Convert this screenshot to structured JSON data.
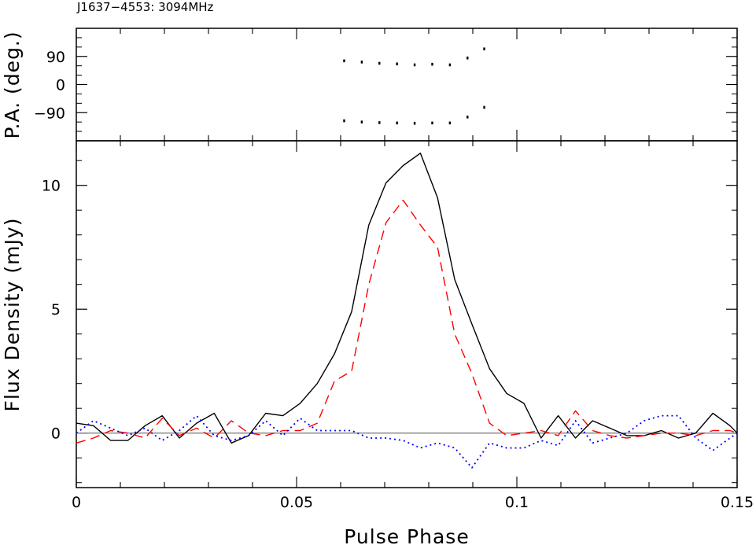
{
  "chart_data": [
    {
      "type": "scatter",
      "title": "J1637−4553: 3094MHz",
      "ylabel": "P.A. (deg.)",
      "xlabel": "",
      "xlim": [
        0,
        0.15
      ],
      "ylim": [
        -180,
        180
      ],
      "grid": false,
      "yticks": [
        {
          "value": 90,
          "label": "90"
        },
        {
          "value": 0,
          "label": "0"
        },
        {
          "value": -90,
          "label": "−90"
        }
      ],
      "series": [
        {
          "color": "#000000",
          "points": [
            [
              0.0608,
              76
            ],
            [
              0.0648,
              72
            ],
            [
              0.0688,
              68
            ],
            [
              0.0728,
              66
            ],
            [
              0.0768,
              63
            ],
            [
              0.0808,
              65
            ],
            [
              0.0848,
              63
            ],
            [
              0.0888,
              85
            ],
            [
              0.0926,
              114
            ],
            [
              0.0608,
              -116
            ],
            [
              0.0648,
              -120
            ],
            [
              0.0688,
              -122
            ],
            [
              0.0728,
              -123
            ],
            [
              0.0768,
              -124
            ],
            [
              0.0808,
              -123
            ],
            [
              0.0848,
              -123
            ],
            [
              0.0888,
              -104
            ],
            [
              0.0926,
              -73
            ]
          ]
        }
      ]
    },
    {
      "type": "line",
      "title": "",
      "xlabel": "Pulse Phase",
      "ylabel": "Flux Density (mJy)",
      "xlim": [
        0,
        0.15
      ],
      "ylim": [
        -2.2,
        11.8
      ],
      "grid": false,
      "xticks": [
        {
          "value": 0,
          "label": "0"
        },
        {
          "value": 0.05,
          "label": "0.05"
        },
        {
          "value": 0.1,
          "label": "0.1"
        },
        {
          "value": 0.15,
          "label": "0.15"
        }
      ],
      "yticks": [
        {
          "value": 0,
          "label": "0"
        },
        {
          "value": 5,
          "label": "5"
        },
        {
          "value": 10,
          "label": "10"
        }
      ],
      "baseline": {
        "value": 0,
        "color": "#808080"
      },
      "series": [
        {
          "style": "solid",
          "color": "#000000",
          "x": [
            0,
            0.0039,
            0.0078,
            0.0117,
            0.0156,
            0.0195,
            0.0234,
            0.0273,
            0.0313,
            0.0352,
            0.0391,
            0.043,
            0.0469,
            0.0508,
            0.0547,
            0.0586,
            0.0625,
            0.0664,
            0.0703,
            0.0742,
            0.0781,
            0.082,
            0.0859,
            0.0898,
            0.0938,
            0.0977,
            0.1016,
            0.1055,
            0.1094,
            0.1133,
            0.1172,
            0.1211,
            0.125,
            0.1289,
            0.1328,
            0.1367,
            0.1406,
            0.1445,
            0.1484,
            0.15
          ],
          "y": [
            0.4,
            0.3,
            -0.3,
            -0.3,
            0.3,
            0.7,
            -0.2,
            0.4,
            0.8,
            -0.4,
            -0.1,
            0.8,
            0.7,
            1.2,
            2.0,
            3.2,
            4.9,
            8.4,
            10.1,
            10.8,
            11.3,
            9.5,
            6.2,
            4.4,
            2.6,
            1.6,
            1.2,
            -0.2,
            0.7,
            -0.2,
            0.5,
            0.2,
            -0.1,
            -0.1,
            0.1,
            -0.2,
            0.0,
            0.8,
            0.3,
            0.0
          ]
        },
        {
          "style": "dashed",
          "color": "#ff0000",
          "x": [
            0,
            0.0039,
            0.0078,
            0.0117,
            0.0156,
            0.0195,
            0.0234,
            0.0273,
            0.0313,
            0.0352,
            0.0391,
            0.043,
            0.0469,
            0.0508,
            0.0547,
            0.0586,
            0.0625,
            0.0664,
            0.0703,
            0.0742,
            0.0781,
            0.082,
            0.0859,
            0.0898,
            0.0938,
            0.0977,
            0.1016,
            0.1055,
            0.1094,
            0.1133,
            0.1172,
            0.1211,
            0.125,
            0.1289,
            0.1328,
            0.1367,
            0.1406,
            0.1445,
            0.1484,
            0.15
          ],
          "y": [
            -0.4,
            -0.2,
            0.1,
            0.0,
            -0.2,
            0.6,
            -0.1,
            0.2,
            -0.2,
            0.5,
            0.0,
            -0.1,
            0.1,
            0.1,
            0.4,
            2.1,
            2.5,
            6.0,
            8.5,
            9.4,
            8.4,
            7.5,
            4.0,
            2.4,
            0.4,
            -0.1,
            0.0,
            0.1,
            -0.1,
            0.9,
            0.1,
            -0.1,
            -0.2,
            -0.1,
            0.0,
            0.0,
            -0.1,
            0.1,
            0.1,
            0.0
          ]
        },
        {
          "style": "dotted",
          "color": "#0000ff",
          "x": [
            0,
            0.0039,
            0.0078,
            0.0117,
            0.0156,
            0.0195,
            0.0234,
            0.0273,
            0.0313,
            0.0352,
            0.0391,
            0.043,
            0.0469,
            0.0508,
            0.0547,
            0.0586,
            0.0625,
            0.0664,
            0.0703,
            0.0742,
            0.0781,
            0.082,
            0.0859,
            0.0898,
            0.0938,
            0.0977,
            0.1016,
            0.1055,
            0.1094,
            0.1133,
            0.1172,
            0.1211,
            0.125,
            0.1289,
            0.1328,
            0.1367,
            0.1406,
            0.1445,
            0.1484,
            0.15
          ],
          "y": [
            0.0,
            0.5,
            0.2,
            -0.1,
            0.2,
            -0.3,
            0.1,
            0.7,
            -0.1,
            -0.3,
            -0.1,
            0.5,
            -0.1,
            0.6,
            0.1,
            0.1,
            0.1,
            -0.2,
            -0.2,
            -0.3,
            -0.6,
            -0.4,
            -0.6,
            -1.4,
            -0.4,
            -0.6,
            -0.6,
            -0.3,
            -0.5,
            0.5,
            -0.4,
            -0.2,
            0.0,
            0.5,
            0.7,
            0.7,
            -0.2,
            -0.7,
            -0.2,
            0.0
          ]
        }
      ]
    }
  ]
}
